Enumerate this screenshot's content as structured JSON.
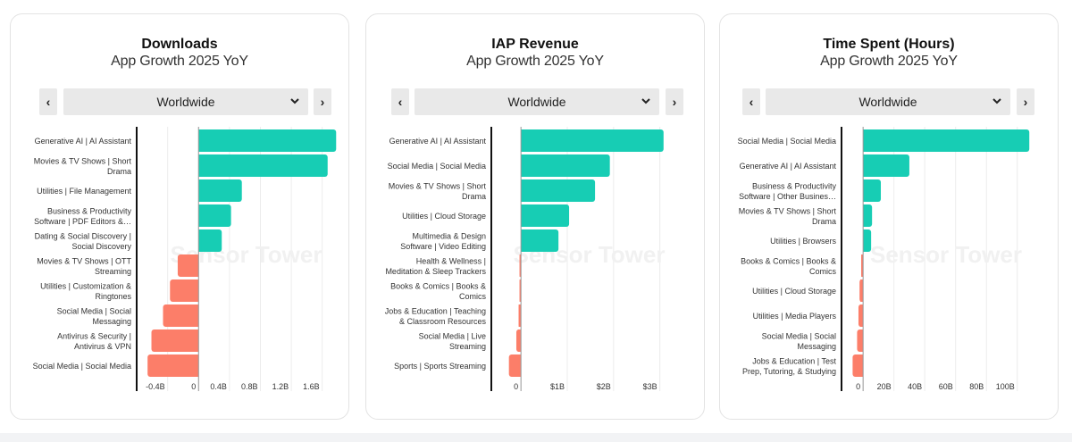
{
  "colors": {
    "positive": "#17CDB4",
    "negative": "#FC7E69",
    "grid": "#ececec",
    "axis": "#111111"
  },
  "watermark": "Sensor Tower",
  "panels": [
    {
      "title": "Downloads",
      "subtitle": "App Growth 2025 YoY",
      "region": "Worldwide",
      "prev_label": "‹",
      "next_label": "›"
    },
    {
      "title": "IAP Revenue",
      "subtitle": "App Growth 2025 YoY",
      "region": "Worldwide",
      "prev_label": "‹",
      "next_label": "›"
    },
    {
      "title": "Time Spent (Hours)",
      "subtitle": "App Growth 2025 YoY",
      "region": "Worldwide",
      "prev_label": "‹",
      "next_label": "›"
    }
  ],
  "chart_data": [
    {
      "type": "bar",
      "orientation": "horizontal",
      "title": "Downloads",
      "subtitle": "App Growth 2025 YoY",
      "unit": "B",
      "categories": [
        [
          "Generative AI | AI Assistant"
        ],
        [
          "Movies & TV Shows | Short",
          "Drama"
        ],
        [
          "Utilities | File Management"
        ],
        [
          "Business & Productivity",
          "Software | PDF Editors &…"
        ],
        [
          "Dating & Social Discovery |",
          "Social Discovery"
        ],
        [
          "Movies & TV Shows | OTT",
          "Streaming"
        ],
        [
          "Utilities | Customization &",
          "Ringtones"
        ],
        [
          "Social Media | Social",
          "Messaging"
        ],
        [
          "Antivirus & Security |",
          "Antivirus & VPN"
        ],
        [
          "Social Media | Social Media"
        ]
      ],
      "values": [
        1.78,
        1.67,
        0.56,
        0.42,
        0.3,
        -0.27,
        -0.37,
        -0.46,
        -0.61,
        -0.66
      ],
      "xlim": [
        -0.72,
        1.8
      ],
      "ticks": [
        -0.4,
        0,
        0.4,
        0.8,
        1.2,
        1.6
      ],
      "tick_labels": [
        "-0.4B",
        "0",
        "0.4B",
        "0.8B",
        "1.2B",
        "1.6B"
      ],
      "grid": true
    },
    {
      "type": "bar",
      "orientation": "horizontal",
      "title": "IAP Revenue",
      "subtitle": "App Growth 2025 YoY",
      "unit": "$B",
      "categories": [
        [
          "Generative AI | AI Assistant"
        ],
        [
          "Social Media | Social Media"
        ],
        [
          "Movies & TV Shows | Short",
          "Drama"
        ],
        [
          "Utilities | Cloud Storage"
        ],
        [
          "Multimedia & Design",
          "Software | Video Editing"
        ],
        [
          "Health & Wellness |",
          "Meditation & Sleep Trackers"
        ],
        [
          "Books & Comics | Books &",
          "Comics"
        ],
        [
          "Jobs & Education | Teaching",
          "& Classroom Resources"
        ],
        [
          "Social Media | Live",
          "Streaming"
        ],
        [
          "Sports | Sports Streaming"
        ]
      ],
      "values": [
        3.08,
        1.92,
        1.6,
        1.04,
        0.81,
        -0.03,
        -0.03,
        -0.05,
        -0.1,
        -0.26
      ],
      "xlim": [
        -0.64,
        3.2
      ],
      "ticks": [
        0,
        1,
        2,
        3
      ],
      "tick_labels": [
        "0",
        "$1B",
        "$2B",
        "$3B"
      ],
      "grid": true
    },
    {
      "type": "bar",
      "orientation": "horizontal",
      "title": "Time Spent (Hours)",
      "subtitle": "App Growth 2025 YoY",
      "unit": "B",
      "categories": [
        [
          "Social Media | Social Media"
        ],
        [
          "Generative AI | AI Assistant"
        ],
        [
          "Business & Productivity",
          "Software | Other Busines…"
        ],
        [
          "Movies & TV Shows | Short",
          "Drama"
        ],
        [
          "Utilities | Browsers"
        ],
        [
          "Books & Comics | Books &",
          "Comics"
        ],
        [
          "Utilities | Cloud Storage"
        ],
        [
          "Utilities | Media Players"
        ],
        [
          "Social Media | Social",
          "Messaging"
        ],
        [
          "Jobs & Education | Test",
          "Prep, Tutoring, & Studying"
        ]
      ],
      "values": [
        107.8,
        30.0,
        11.5,
        5.8,
        5.2,
        -1.2,
        -2.3,
        -3.0,
        -3.9,
        -6.8
      ],
      "xlim": [
        -14,
        110
      ],
      "ticks": [
        0,
        20,
        40,
        60,
        80,
        100
      ],
      "tick_labels": [
        "0",
        "20B",
        "40B",
        "60B",
        "80B",
        "100B"
      ],
      "grid": true
    }
  ]
}
